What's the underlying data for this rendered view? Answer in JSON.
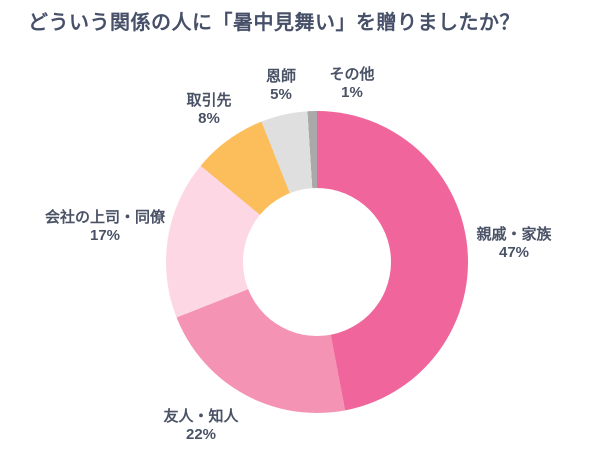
{
  "title": "どういう関係の人に「暑中見舞い」を贈りましたか？",
  "colors": {
    "background": "#ffffff",
    "title_text": "#475069",
    "label_text": "#4a5266"
  },
  "chart_data": {
    "type": "pie",
    "subtype": "donut",
    "unit": "%",
    "start_angle_deg": 0,
    "direction": "clockwise",
    "inner_radius_ratio": 0.49,
    "legend_position": "outside-slice-labels",
    "segments": [
      {
        "label": "親戚・家族",
        "value": 47,
        "value_label": "47%",
        "color": "#f0659b"
      },
      {
        "label": "友人・知人",
        "value": 22,
        "value_label": "22%",
        "color": "#f493b3"
      },
      {
        "label": "会社の上司・同僚",
        "value": 17,
        "value_label": "17%",
        "color": "#fdd8e4"
      },
      {
        "label": "取引先",
        "value": 8,
        "value_label": "8%",
        "color": "#fcbd5b"
      },
      {
        "label": "恩師",
        "value": 5,
        "value_label": "5%",
        "color": "#dfdfdf"
      },
      {
        "label": "その他",
        "value": 1,
        "value_label": "1%",
        "color": "#a9a9a9"
      }
    ]
  }
}
